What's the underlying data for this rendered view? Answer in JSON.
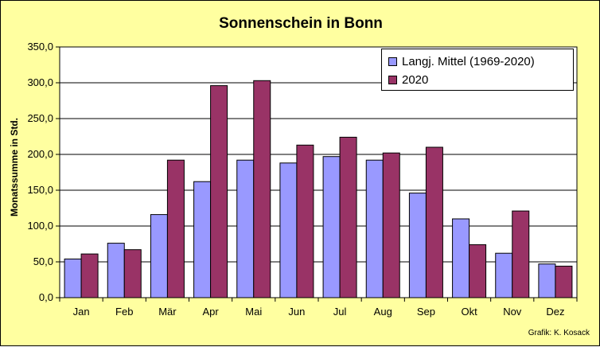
{
  "chart_data": {
    "type": "bar",
    "title": "Sonnenschein in Bonn",
    "ylabel": "Monatssumme in Std.",
    "xlabel": "",
    "ylim": [
      0,
      350
    ],
    "yticks": [
      "0,0",
      "50,0",
      "100,0",
      "150,0",
      "200,0",
      "250,0",
      "300,0",
      "350,0"
    ],
    "ytick_values": [
      0,
      50,
      100,
      150,
      200,
      250,
      300,
      350
    ],
    "categories": [
      "Jan",
      "Feb",
      "Mär",
      "Apr",
      "Mai",
      "Jun",
      "Jul",
      "Aug",
      "Sep",
      "Okt",
      "Nov",
      "Dez"
    ],
    "series": [
      {
        "name": "Langj. Mittel (1969-2020)",
        "color": "#9999ff",
        "values": [
          54,
          76,
          116,
          162,
          192,
          188,
          197,
          192,
          146,
          110,
          62,
          47
        ]
      },
      {
        "name": "2020",
        "color": "#993366",
        "values": [
          61,
          67,
          192,
          296,
          303,
          213,
          224,
          202,
          210,
          74,
          121,
          44
        ]
      }
    ],
    "grid": true,
    "legend_position": "top-right",
    "plot_background": "#ffffff",
    "chart_background": "#ffffa0"
  },
  "credit": "Grafik:  K. Kosack"
}
